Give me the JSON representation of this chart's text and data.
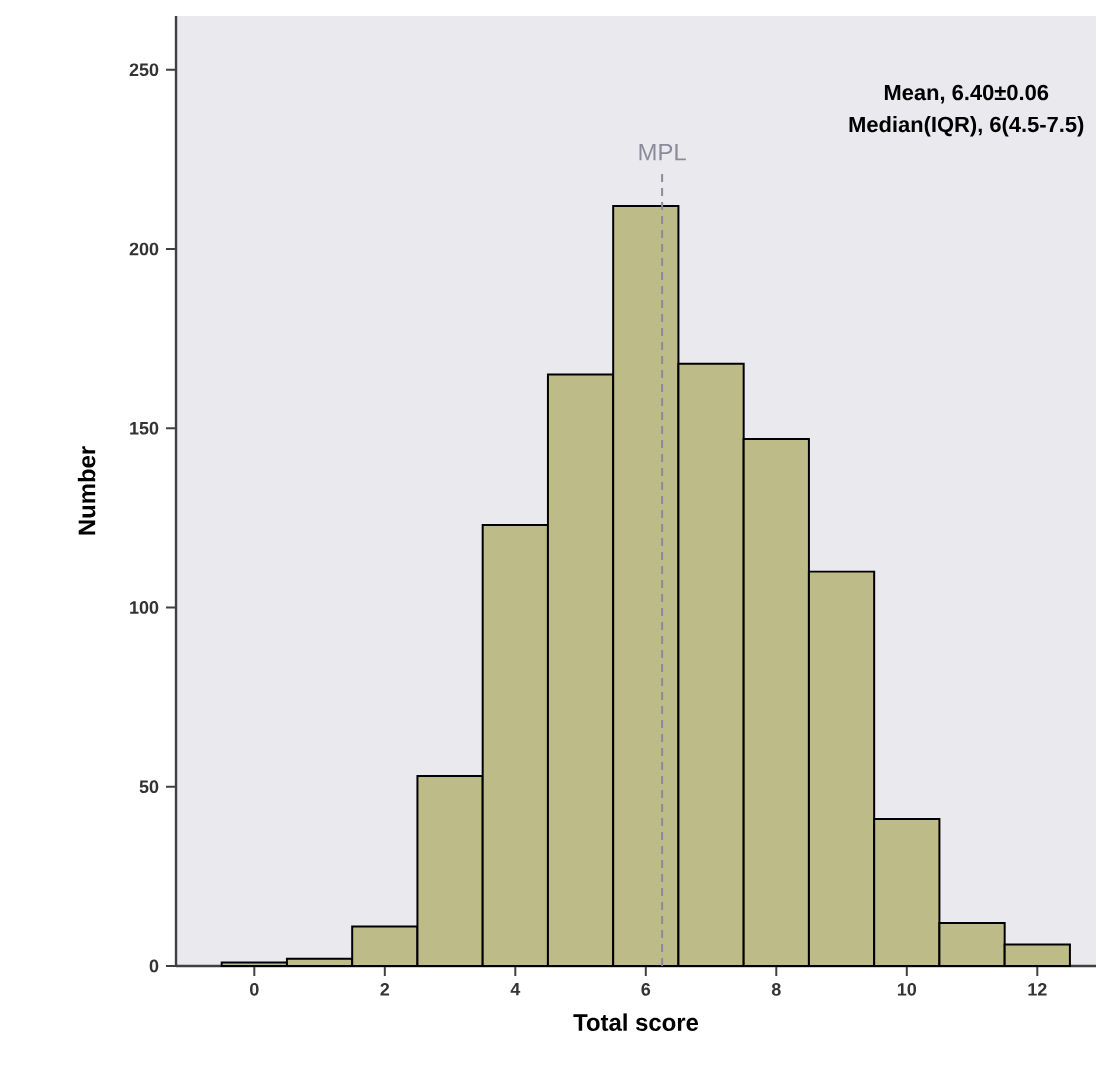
{
  "chart_data": {
    "type": "histogram",
    "xlabel": "Total score",
    "ylabel": "Number",
    "bins": [
      -0.5,
      0.5,
      1.5,
      2.5,
      3.5,
      4.5,
      5.5,
      6.5,
      7.5,
      8.5,
      9.5,
      10.5,
      11.5,
      12.5
    ],
    "values": [
      1,
      2,
      11,
      53,
      123,
      165,
      212,
      168,
      147,
      110,
      41,
      12,
      6
    ],
    "color": "#bdbb87",
    "xlim": [
      -1.2,
      12.9
    ],
    "ylim": [
      0,
      265
    ],
    "xticks": [
      0,
      2,
      4,
      6,
      8,
      10,
      12
    ],
    "yticks": [
      0,
      50,
      100,
      150,
      200,
      250
    ],
    "ref_lines": [
      {
        "axis": "x",
        "value": 6.25,
        "label": "MPL",
        "color": "#8a8a9a",
        "line_style": "dashed"
      }
    ],
    "annotations": [
      "Mean, 6.40±0.06",
      "Median(IQR), 6(4.5-7.5)"
    ],
    "grid": false
  }
}
